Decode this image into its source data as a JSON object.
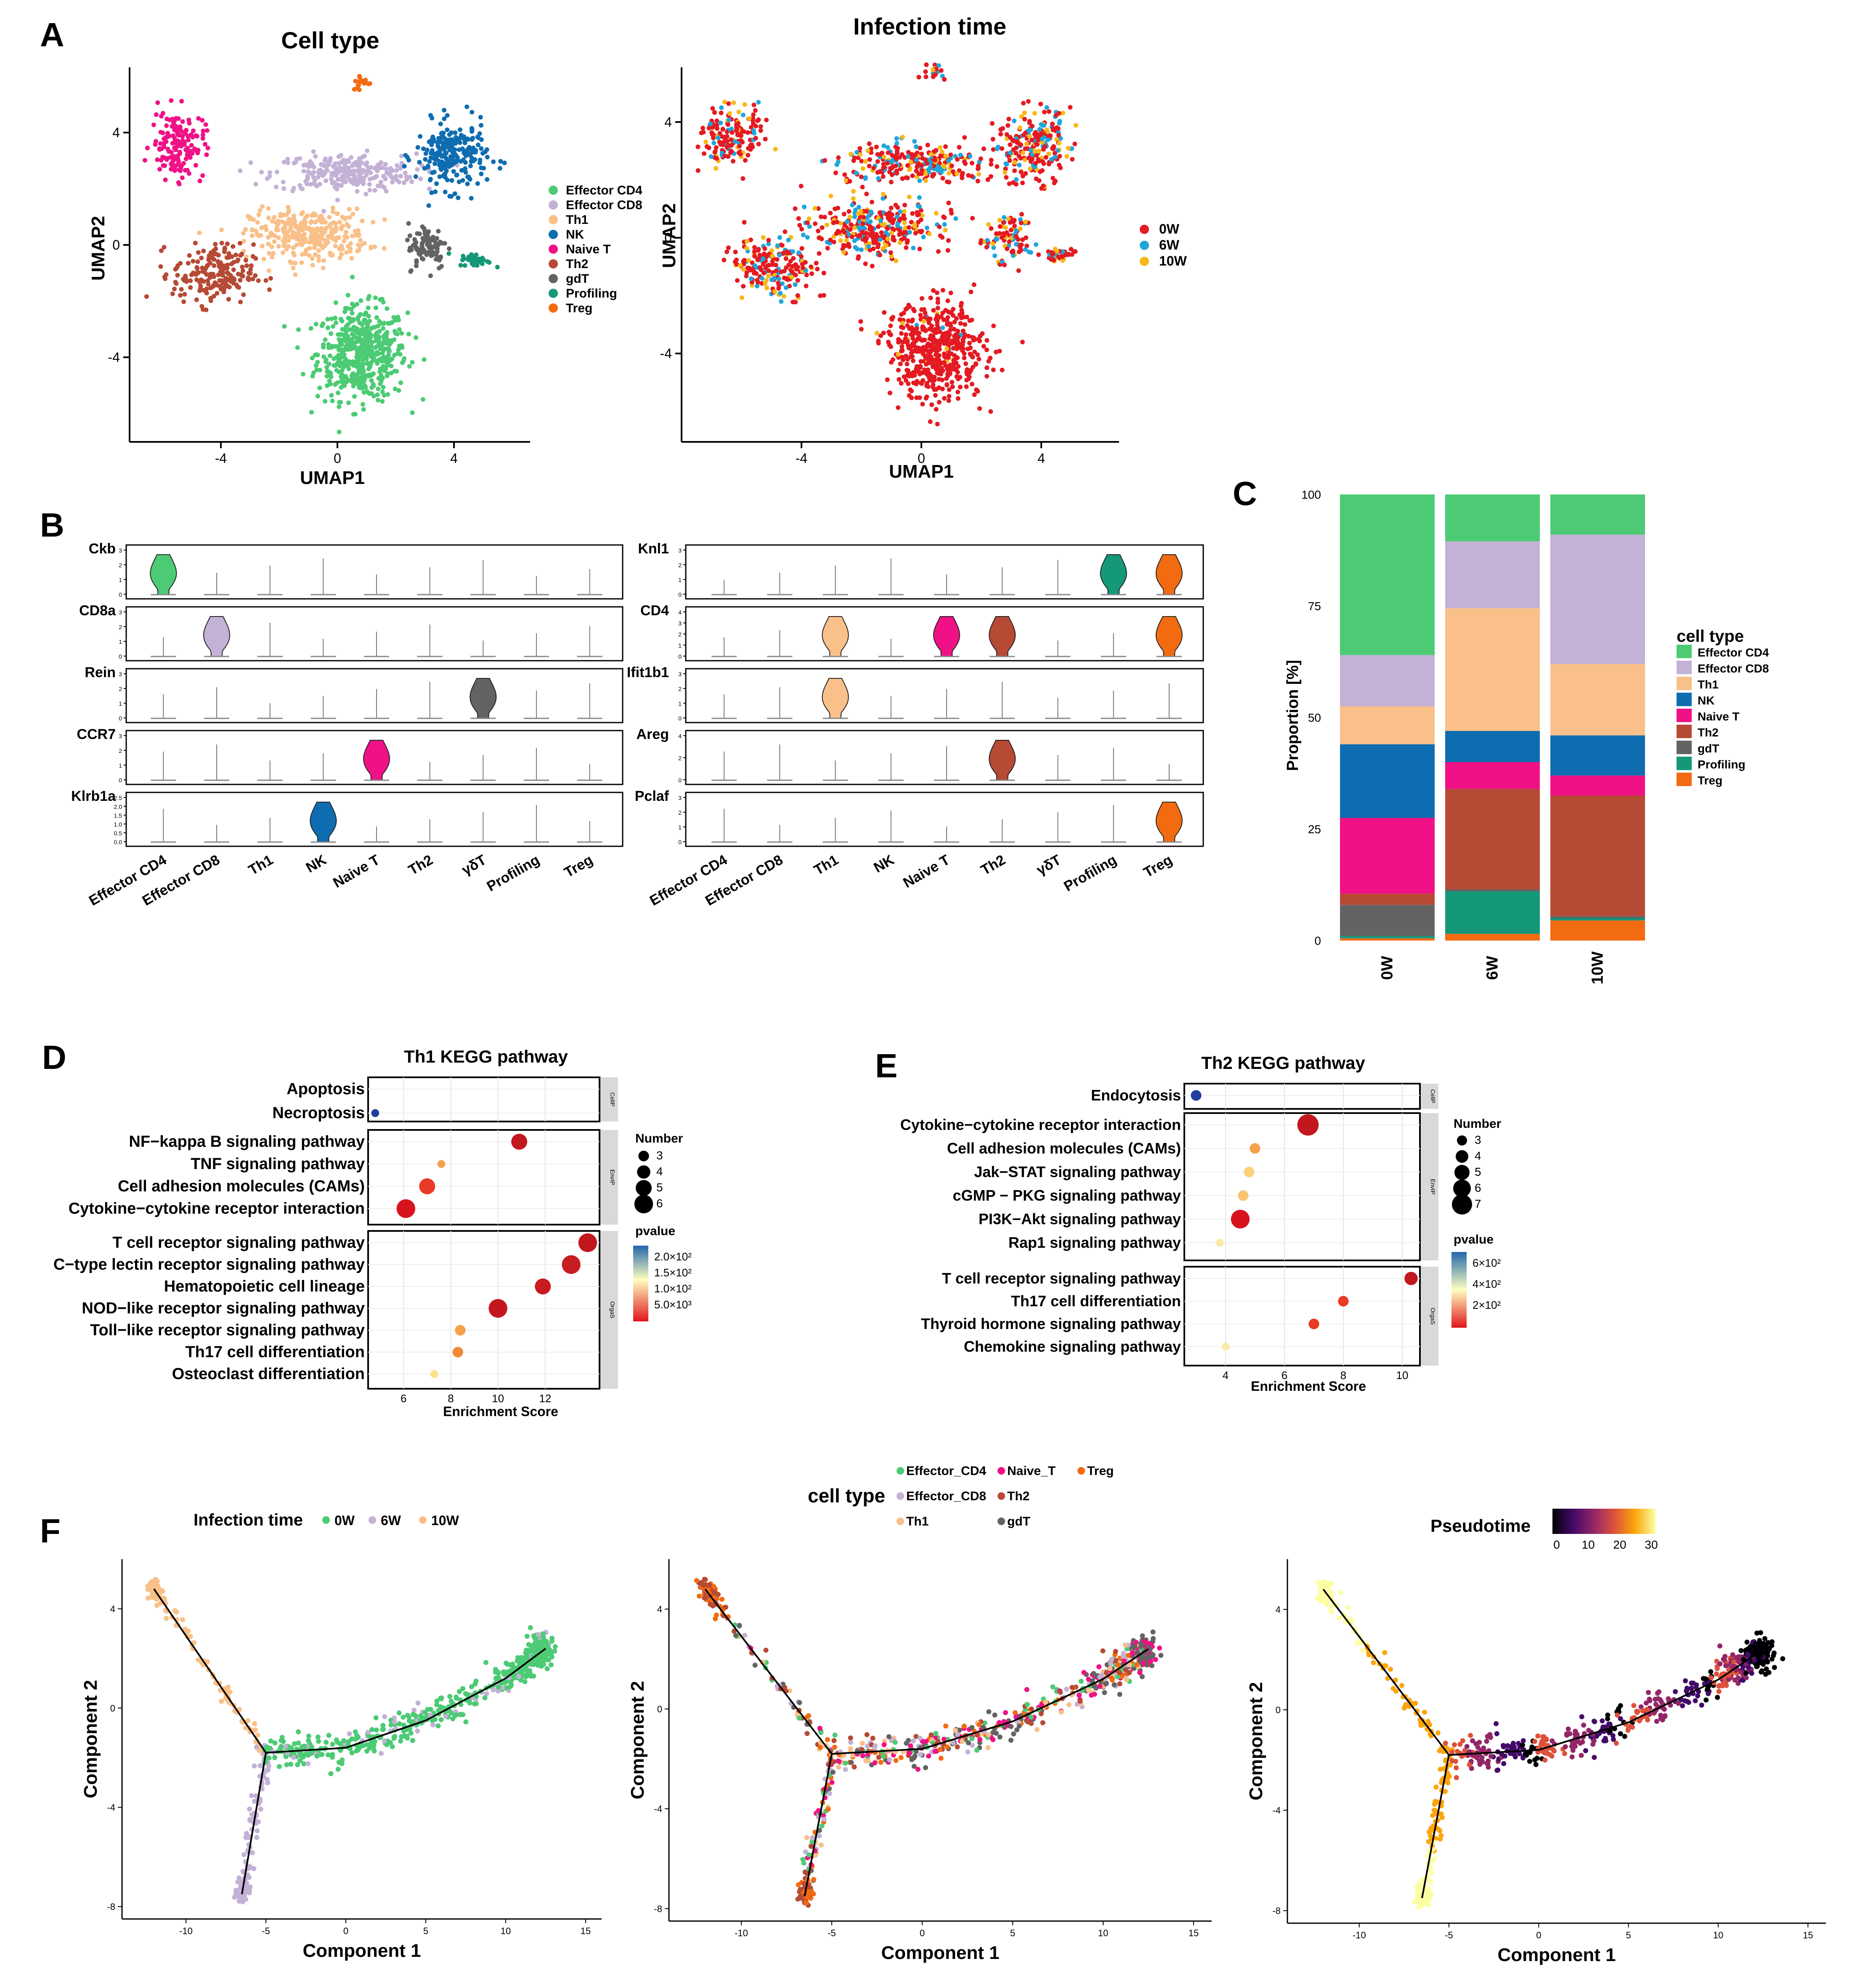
{
  "panel_letters": [
    "A",
    "B",
    "C",
    "D",
    "E",
    "F"
  ],
  "colors": {
    "cell_types": {
      "Effector CD4": "#4ccb74",
      "Effector CD8": "#c4b1d6",
      "Th1": "#f9c089",
      "NK": "#0e6db0",
      "Naive T": "#f01186",
      "Th2": "#b64a35",
      "gdT": "#636363",
      "Profiling": "#149878",
      "Treg": "#f26b11"
    },
    "infection_time": {
      "0W": "#e41a22",
      "6W": "#1ea6dc",
      "10W": "#f8b816"
    },
    "pseudotime_scale": [
      "#000004",
      "#420a68",
      "#932667",
      "#dd513a",
      "#fca50a",
      "#fcffa4"
    ]
  },
  "panel_a": {
    "left": {
      "title": "Cell type",
      "xlabel": "UMAP1",
      "ylabel": "UMAP2",
      "xticks": [
        "-4",
        "0",
        "4"
      ],
      "yticks": [
        "4",
        "0",
        "-4"
      ],
      "legend": [
        "Effector CD4",
        "Effector CD8",
        "Th1",
        "NK",
        "Naive T",
        "Th2",
        "gdT",
        "Profiling",
        "Treg"
      ]
    },
    "right": {
      "title": "Infection time",
      "xlabel": "UMAP1",
      "ylabel": "UMAP2",
      "xticks": [
        "-4",
        "0",
        "4"
      ],
      "yticks": [
        "4",
        "0",
        "-4"
      ],
      "legend": [
        "0W",
        "6W",
        "10W"
      ]
    }
  },
  "panel_b": {
    "categories": [
      "Effector CD4",
      "Effector CD8",
      "Th1",
      "NK",
      "Naive T",
      "Th2",
      "γδT",
      "Profiling",
      "Treg"
    ],
    "left_genes": [
      {
        "gene": "Ckb",
        "ticks": [
          "3",
          "2",
          "1",
          "0"
        ],
        "highlight": 0
      },
      {
        "gene": "CD8a",
        "ticks": [
          "3",
          "2",
          "1",
          "0"
        ],
        "highlight": 1
      },
      {
        "gene": "Rein",
        "ticks": [
          "3",
          "2",
          "1",
          "0"
        ],
        "highlight": 6
      },
      {
        "gene": "CCR7",
        "ticks": [
          "3",
          "2",
          "1",
          "0"
        ],
        "highlight": 4
      },
      {
        "gene": "Klrb1a",
        "ticks": [
          "2.5",
          "2.0",
          "1.5",
          "1.0",
          "0.5",
          "0.0"
        ],
        "highlight": 3
      }
    ],
    "right_genes": [
      {
        "gene": "Knl1",
        "ticks": [
          "3",
          "2",
          "1",
          "0"
        ],
        "highlight": [
          7,
          8
        ]
      },
      {
        "gene": "CD4",
        "ticks": [
          "4",
          "3",
          "2",
          "1",
          "0"
        ],
        "highlight": [
          2,
          4,
          5,
          8
        ]
      },
      {
        "gene": "Ifit1b1",
        "ticks": [
          "3",
          "2",
          "1",
          "0"
        ],
        "highlight": [
          2
        ]
      },
      {
        "gene": "Areg",
        "ticks": [
          "4",
          "2",
          "0"
        ],
        "highlight": [
          5
        ]
      },
      {
        "gene": "Pclaf",
        "ticks": [
          "3",
          "2",
          "1",
          "0"
        ],
        "highlight": [
          8
        ]
      }
    ]
  },
  "panel_c": {
    "ylabel": "Proportion [%]",
    "legend_title": "cell type",
    "legend": [
      "Effector CD4",
      "Effector CD8",
      "Th1",
      "NK",
      "Naive T",
      "Th2",
      "gdT",
      "Profiling",
      "Treg"
    ],
    "yticks": [
      "100",
      "75",
      "50",
      "25",
      "0"
    ]
  },
  "panel_d": {
    "title": "Th1 KEGG pathway",
    "xlabel": "Enrichment Score",
    "xticks": [
      "6",
      "8",
      "10",
      "12"
    ],
    "groups": [
      {
        "strip": "CellP",
        "pathways": [
          "Apoptosis",
          "Necroptosis"
        ]
      },
      {
        "strip": "EnvIP",
        "pathways": [
          "NF−kappa B signaling pathway",
          "TNF signaling pathway",
          "Cell adhesion molecules (CAMs)",
          "Cytokine−cytokine receptor interaction"
        ]
      },
      {
        "strip": "OrgaS",
        "pathways": [
          "T cell receptor signaling pathway",
          "C−type lectin receptor signaling pathway",
          "Hematopoietic cell lineage",
          "NOD−like receptor signaling pathway",
          "Toll−like receptor signaling pathway",
          "Th17 cell differentiation",
          "Osteoclast differentiation"
        ]
      }
    ],
    "size_legend_title": "Number",
    "size_legend": [
      "3",
      "4",
      "5",
      "6"
    ],
    "color_legend_title": "pvalue",
    "color_legend": [
      "2.0×10²",
      "1.5×10²",
      "1.0×10²",
      "5.0×10³"
    ]
  },
  "panel_e": {
    "title": "Th2 KEGG pathway",
    "xlabel": "Enrichment Score",
    "xticks": [
      "4",
      "6",
      "8",
      "10"
    ],
    "groups": [
      {
        "strip": "CellP",
        "pathways": [
          "Endocytosis"
        ]
      },
      {
        "strip": "EnvIP",
        "pathways": [
          "Cytokine−cytokine receptor interaction",
          "Cell adhesion molecules (CAMs)",
          "Jak−STAT signaling pathway",
          "cGMP − PKG signaling pathway",
          "PI3K−Akt signaling pathway",
          "Rap1 signaling pathway"
        ]
      },
      {
        "strip": "OrgaS",
        "pathways": [
          "T cell receptor signaling pathway",
          "Th17 cell differentiation",
          "Thyroid hormone signaling pathway",
          "Chemokine signaling pathway"
        ]
      }
    ],
    "size_legend_title": "Number",
    "size_legend": [
      "3",
      "4",
      "5",
      "6",
      "7"
    ],
    "color_legend_title": "pvalue",
    "color_legend": [
      "6×10²",
      "4×10²",
      "2×10²"
    ]
  },
  "panel_f": {
    "left_legend_title": "Infection time",
    "left_legend": [
      "0W",
      "6W",
      "10W"
    ],
    "mid_legend_title": "cell type",
    "mid_legend": [
      "Effector_CD4",
      "Naive_T",
      "Treg",
      "Effector_CD8",
      "Th2",
      "Th1",
      "gdT"
    ],
    "right_legend_title": "Pseudotime",
    "right_legend_ticks": [
      "0",
      "10",
      "20",
      "30"
    ],
    "xlabel": "Component 1",
    "ylabel": "Component 2",
    "xticks": [
      "-10",
      "-5",
      "0",
      "5",
      "10",
      "15"
    ],
    "yticks": [
      "4",
      "0",
      "-4",
      "-8"
    ]
  },
  "chart_data": [
    {
      "type": "scatter",
      "title": "Cell type",
      "xlabel": "UMAP1",
      "ylabel": "UMAP2",
      "xlim": [
        -6.5,
        6.5
      ],
      "ylim": [
        -7,
        6
      ],
      "series": [
        {
          "name": "Effector CD4",
          "centers": [
            [
              1.0,
              -4.0
            ]
          ]
        },
        {
          "name": "Effector CD8",
          "centers": [
            [
              0.5,
              2.4
            ]
          ]
        },
        {
          "name": "Th1",
          "centers": [
            [
              -0.8,
              0.2
            ]
          ]
        },
        {
          "name": "NK",
          "centers": [
            [
              4.0,
              3.0
            ]
          ]
        },
        {
          "name": "Naive T",
          "centers": [
            [
              -5.2,
              3.4
            ]
          ]
        },
        {
          "name": "Th2",
          "centers": [
            [
              -4.0,
              -1.2
            ]
          ]
        },
        {
          "name": "gdT",
          "centers": [
            [
              3.3,
              -0.3
            ]
          ]
        },
        {
          "name": "Profiling",
          "centers": [
            [
              4.8,
              -0.7
            ]
          ]
        },
        {
          "name": "Treg",
          "centers": [
            [
              1.0,
              5.7
            ]
          ]
        }
      ]
    },
    {
      "type": "scatter",
      "title": "Infection time",
      "xlabel": "UMAP1",
      "ylabel": "UMAP2",
      "xlim": [
        -6.5,
        6.5
      ],
      "ylim": [
        -7,
        6
      ],
      "series": [
        {
          "name": "0W"
        },
        {
          "name": "6W"
        },
        {
          "name": "10W"
        }
      ]
    },
    {
      "type": "bar",
      "stacked": true,
      "ylabel": "Proportion [%]",
      "ylim": [
        0,
        100
      ],
      "categories": [
        "0W",
        "6W",
        "10W"
      ],
      "series": [
        {
          "name": "Treg",
          "values": [
            0.5,
            1.5,
            4.5
          ]
        },
        {
          "name": "Profiling",
          "values": [
            0.5,
            9.5,
            0.5
          ]
        },
        {
          "name": "gdT",
          "values": [
            7,
            0.5,
            0.5
          ]
        },
        {
          "name": "Th2",
          "values": [
            2.5,
            22.5,
            27
          ]
        },
        {
          "name": "Naive T",
          "values": [
            17,
            6,
            4.5
          ]
        },
        {
          "name": "NK",
          "values": [
            16.5,
            7,
            9
          ]
        },
        {
          "name": "Th1",
          "values": [
            8.5,
            27.5,
            16
          ]
        },
        {
          "name": "Effector CD8",
          "values": [
            11.5,
            15,
            29
          ]
        },
        {
          "name": "Effector CD4",
          "values": [
            36,
            10.5,
            9
          ]
        }
      ]
    },
    {
      "type": "scatter",
      "title": "Th1 KEGG pathway",
      "xlabel": "Enrichment Score",
      "xlim": [
        4.5,
        14.3
      ],
      "points": [
        {
          "pathway": "Apoptosis",
          "x": 0,
          "number": 0,
          "color": "none"
        },
        {
          "pathway": "Necroptosis",
          "x": 4.8,
          "number": 2,
          "color": "#1f3f9c"
        },
        {
          "pathway": "NF−kappa B signaling pathway",
          "x": 10.9,
          "number": 5,
          "color": "#c3171f"
        },
        {
          "pathway": "TNF signaling pathway",
          "x": 7.6,
          "number": 2,
          "color": "#f5a14c"
        },
        {
          "pathway": "Cell adhesion molecules (CAMs)",
          "x": 7.0,
          "number": 5,
          "color": "#e93a25"
        },
        {
          "pathway": "Cytokine−cytokine receptor interaction",
          "x": 6.1,
          "number": 6,
          "color": "#d7141e"
        },
        {
          "pathway": "T cell receptor signaling pathway",
          "x": 13.8,
          "number": 6,
          "color": "#c3171f"
        },
        {
          "pathway": "C−type lectin receptor signaling pathway",
          "x": 13.1,
          "number": 6,
          "color": "#c61d22"
        },
        {
          "pathway": "Hematopoietic cell lineage",
          "x": 11.9,
          "number": 5,
          "color": "#c91b20"
        },
        {
          "pathway": "NOD−like receptor signaling pathway",
          "x": 10.0,
          "number": 6,
          "color": "#c3171f"
        },
        {
          "pathway": "Toll−like receptor signaling pathway",
          "x": 8.4,
          "number": 3,
          "color": "#f5a14c"
        },
        {
          "pathway": "Th17 cell differentiation",
          "x": 8.3,
          "number": 3,
          "color": "#f08a3a"
        },
        {
          "pathway": "Osteoclast differentiation",
          "x": 7.3,
          "number": 2,
          "color": "#fde28a"
        }
      ]
    },
    {
      "type": "scatter",
      "title": "Th2 KEGG pathway",
      "xlabel": "Enrichment Score",
      "xlim": [
        2.6,
        10.6
      ],
      "points": [
        {
          "pathway": "Endocytosis",
          "x": 3.0,
          "number": 3,
          "color": "#1f3f9c"
        },
        {
          "pathway": "Cytokine−cytokine receptor interaction",
          "x": 6.8,
          "number": 7,
          "color": "#c3171f"
        },
        {
          "pathway": "Cell adhesion molecules (CAMs)",
          "x": 5.0,
          "number": 3,
          "color": "#f5a14c"
        },
        {
          "pathway": "Jak−STAT signaling pathway",
          "x": 4.8,
          "number": 3,
          "color": "#fbd27a"
        },
        {
          "pathway": "cGMP − PKG signaling pathway",
          "x": 4.6,
          "number": 3,
          "color": "#f8c570"
        },
        {
          "pathway": "PI3K−Akt signaling pathway",
          "x": 4.5,
          "number": 6,
          "color": "#d7141e"
        },
        {
          "pathway": "Rap1 signaling pathway",
          "x": 3.8,
          "number": 2,
          "color": "#fde9a8"
        },
        {
          "pathway": "T cell receptor signaling pathway",
          "x": 10.3,
          "number": 4,
          "color": "#c3171f"
        },
        {
          "pathway": "Th17 cell differentiation",
          "x": 8.0,
          "number": 3,
          "color": "#e93a25"
        },
        {
          "pathway": "Thyroid hormone signaling pathway",
          "x": 7.0,
          "number": 3,
          "color": "#e93a25"
        },
        {
          "pathway": "Chemokine signaling pathway",
          "x": 4.0,
          "number": 2,
          "color": "#fde9a8"
        }
      ]
    },
    {
      "type": "scatter",
      "xlabel": "Component 1",
      "ylabel": "Component 2",
      "xlim": [
        -14,
        16
      ],
      "ylim": [
        -8.5,
        6
      ],
      "trajectory": [
        [
          -12.0,
          4.8
        ],
        [
          -5.0,
          -1.8
        ],
        [
          0,
          -1.6
        ],
        [
          5,
          -0.5
        ],
        [
          10,
          1.2
        ],
        [
          12.5,
          2.4
        ]
      ],
      "branch": [
        [
          -5.0,
          -1.8
        ],
        [
          -6.5,
          -7.5
        ]
      ]
    }
  ]
}
